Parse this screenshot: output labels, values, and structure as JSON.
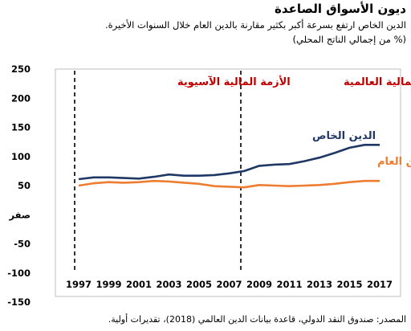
{
  "header": {
    "title": "ديون الأسواق الصاعدة",
    "subtitle": "الدين الخاص ارتفع بسرعة أكبر بكثير مقارنة بالدين العام خلال السنوات الأخيرة.",
    "unit": "(% من إجمالي الناتج المحلي)"
  },
  "footer": {
    "source": "المصدر: صندوق النقد الدولي، قاعدة بيانات الدين العالمي (2018)، تقديرات أولية."
  },
  "chart_data": {
    "type": "line",
    "x": [
      1997,
      1998,
      1999,
      2000,
      2001,
      2002,
      2003,
      2004,
      2005,
      2006,
      2007,
      2008,
      2009,
      2010,
      2011,
      2012,
      2013,
      2014,
      2015,
      2016,
      2017
    ],
    "xticks": [
      1997,
      1999,
      2001,
      2003,
      2005,
      2007,
      2009,
      2011,
      2013,
      2015,
      2017
    ],
    "xtick_labels": [
      "1997",
      "1999",
      "2001",
      "2003",
      "2005",
      "2007",
      "2009",
      "2011",
      "2013",
      "2015",
      "2017"
    ],
    "ylim": [
      -150,
      250
    ],
    "yticks": [
      250,
      200,
      150,
      100,
      50,
      0,
      -50,
      -100,
      -150
    ],
    "ytick_labels": [
      "250",
      "200",
      "150",
      "100",
      "50",
      "صفر",
      "-50",
      "-100",
      "-150"
    ],
    "series": [
      {
        "name": "الدين الخاص",
        "color": "#1f3864",
        "values": [
          61,
          64,
          64,
          63,
          62,
          65,
          69,
          67,
          67,
          68,
          71,
          75,
          84,
          86,
          87,
          92,
          98,
          106,
          115,
          120,
          120
        ]
      },
      {
        "name": "الدين العام",
        "color": "#ed7d31",
        "values": [
          50,
          54,
          56,
          55,
          56,
          58,
          57,
          55,
          53,
          49,
          48,
          47,
          51,
          50,
          49,
          50,
          51,
          53,
          56,
          58,
          58
        ]
      }
    ],
    "annotations": [
      {
        "text": "الأزمة المالية الآسيوية",
        "x": 1997,
        "color": "#c00000"
      },
      {
        "text": "الأزمة المالية العالمية",
        "x": 2008,
        "color": "#c00000"
      }
    ],
    "grid": false,
    "legend": "inline-labels"
  }
}
